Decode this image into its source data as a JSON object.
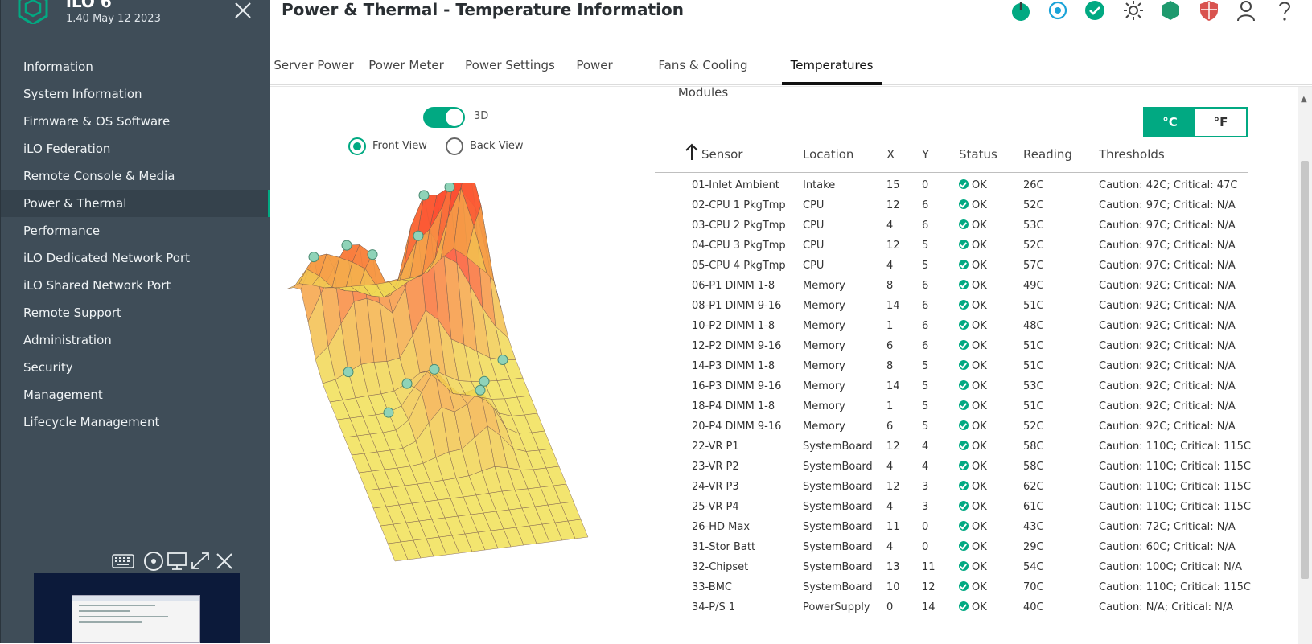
{
  "sidebar": {
    "app_title": "iLO 6",
    "version": "1.40 May 12 2023",
    "items": [
      {
        "label": "Information",
        "active": false
      },
      {
        "label": "System Information",
        "active": false
      },
      {
        "label": "Firmware & OS Software",
        "active": false
      },
      {
        "label": "iLO Federation",
        "active": false
      },
      {
        "label": "Remote Console & Media",
        "active": false
      },
      {
        "label": "Power & Thermal",
        "active": true
      },
      {
        "label": "Performance",
        "active": false
      },
      {
        "label": "iLO Dedicated Network Port",
        "active": false
      },
      {
        "label": "iLO Shared Network Port",
        "active": false
      },
      {
        "label": "Remote Support",
        "active": false
      },
      {
        "label": "Administration",
        "active": false
      },
      {
        "label": "Security",
        "active": false
      },
      {
        "label": "Management",
        "active": false
      },
      {
        "label": "Lifecycle Management",
        "active": false
      }
    ],
    "bottom_icons": [
      "keyboard-icon",
      "disc-icon",
      "monitor-icon",
      "expand-icon",
      "close-icon"
    ]
  },
  "header": {
    "title": "Power & Thermal - Temperature Information",
    "icons": [
      "power-icon",
      "locator-icon",
      "health-ok-icon",
      "brightness-icon",
      "security-shield-icon",
      "security-state-icon",
      "user-icon",
      "help-icon"
    ]
  },
  "tabs": [
    {
      "label": "Server Power",
      "active": false
    },
    {
      "label": "Power Meter",
      "active": false
    },
    {
      "label": "Power Settings",
      "active": false
    },
    {
      "label": "Power",
      "active": false
    },
    {
      "label": "Fans & Cooling Modules",
      "active": false
    },
    {
      "label": "Temperatures",
      "active": true
    }
  ],
  "view": {
    "toggle_label": "3D",
    "toggle_on": true,
    "front_view_label": "Front View",
    "back_view_label": "Back View",
    "selected_view": "Front View"
  },
  "units": {
    "celsius": "°C",
    "fahrenheit": "°F",
    "selected": "°C"
  },
  "table": {
    "columns": [
      "Sensor",
      "Location",
      "X",
      "Y",
      "Status",
      "Reading",
      "Thresholds"
    ],
    "sort_column": "Sensor",
    "rows": [
      [
        "01-Inlet Ambient",
        "Intake",
        "15",
        "0",
        "OK",
        "26C",
        "Caution: 42C; Critical: 47C"
      ],
      [
        "02-CPU 1 PkgTmp",
        "CPU",
        "12",
        "6",
        "OK",
        "52C",
        "Caution: 97C; Critical: N/A"
      ],
      [
        "03-CPU 2 PkgTmp",
        "CPU",
        "4",
        "6",
        "OK",
        "53C",
        "Caution: 97C; Critical: N/A"
      ],
      [
        "04-CPU 3 PkgTmp",
        "CPU",
        "12",
        "5",
        "OK",
        "52C",
        "Caution: 97C; Critical: N/A"
      ],
      [
        "05-CPU 4 PkgTmp",
        "CPU",
        "4",
        "5",
        "OK",
        "57C",
        "Caution: 97C; Critical: N/A"
      ],
      [
        "06-P1 DIMM 1-8",
        "Memory",
        "8",
        "6",
        "OK",
        "49C",
        "Caution: 92C; Critical: N/A"
      ],
      [
        "08-P1 DIMM 9-16",
        "Memory",
        "14",
        "6",
        "OK",
        "51C",
        "Caution: 92C; Critical: N/A"
      ],
      [
        "10-P2 DIMM 1-8",
        "Memory",
        "1",
        "6",
        "OK",
        "48C",
        "Caution: 92C; Critical: N/A"
      ],
      [
        "12-P2 DIMM 9-16",
        "Memory",
        "6",
        "6",
        "OK",
        "51C",
        "Caution: 92C; Critical: N/A"
      ],
      [
        "14-P3 DIMM 1-8",
        "Memory",
        "8",
        "5",
        "OK",
        "51C",
        "Caution: 92C; Critical: N/A"
      ],
      [
        "16-P3 DIMM 9-16",
        "Memory",
        "14",
        "5",
        "OK",
        "53C",
        "Caution: 92C; Critical: N/A"
      ],
      [
        "18-P4 DIMM 1-8",
        "Memory",
        "1",
        "5",
        "OK",
        "51C",
        "Caution: 92C; Critical: N/A"
      ],
      [
        "20-P4 DIMM 9-16",
        "Memory",
        "6",
        "5",
        "OK",
        "52C",
        "Caution: 92C; Critical: N/A"
      ],
      [
        "22-VR P1",
        "SystemBoard",
        "12",
        "4",
        "OK",
        "58C",
        "Caution: 110C; Critical: 115C"
      ],
      [
        "23-VR P2",
        "SystemBoard",
        "4",
        "4",
        "OK",
        "58C",
        "Caution: 110C; Critical: 115C"
      ],
      [
        "24-VR P3",
        "SystemBoard",
        "12",
        "3",
        "OK",
        "62C",
        "Caution: 110C; Critical: 115C"
      ],
      [
        "25-VR P4",
        "SystemBoard",
        "4",
        "3",
        "OK",
        "61C",
        "Caution: 110C; Critical: 115C"
      ],
      [
        "26-HD Max",
        "SystemBoard",
        "11",
        "0",
        "OK",
        "43C",
        "Caution: 72C; Critical: N/A"
      ],
      [
        "31-Stor Batt",
        "SystemBoard",
        "4",
        "0",
        "OK",
        "29C",
        "Caution: 60C; Critical: N/A"
      ],
      [
        "32-Chipset",
        "SystemBoard",
        "13",
        "11",
        "OK",
        "54C",
        "Caution: 100C; Critical: N/A"
      ],
      [
        "33-BMC",
        "SystemBoard",
        "10",
        "12",
        "OK",
        "70C",
        "Caution: 110C; Critical: 115C"
      ],
      [
        "34-P/S 1",
        "PowerSupply",
        "0",
        "14",
        "OK",
        "40C",
        "Caution: N/A; Critical: N/A"
      ]
    ]
  },
  "colors": {
    "accent": "#01a982",
    "sidebar_bg": "#3f4d58",
    "ok": "#01a982"
  }
}
